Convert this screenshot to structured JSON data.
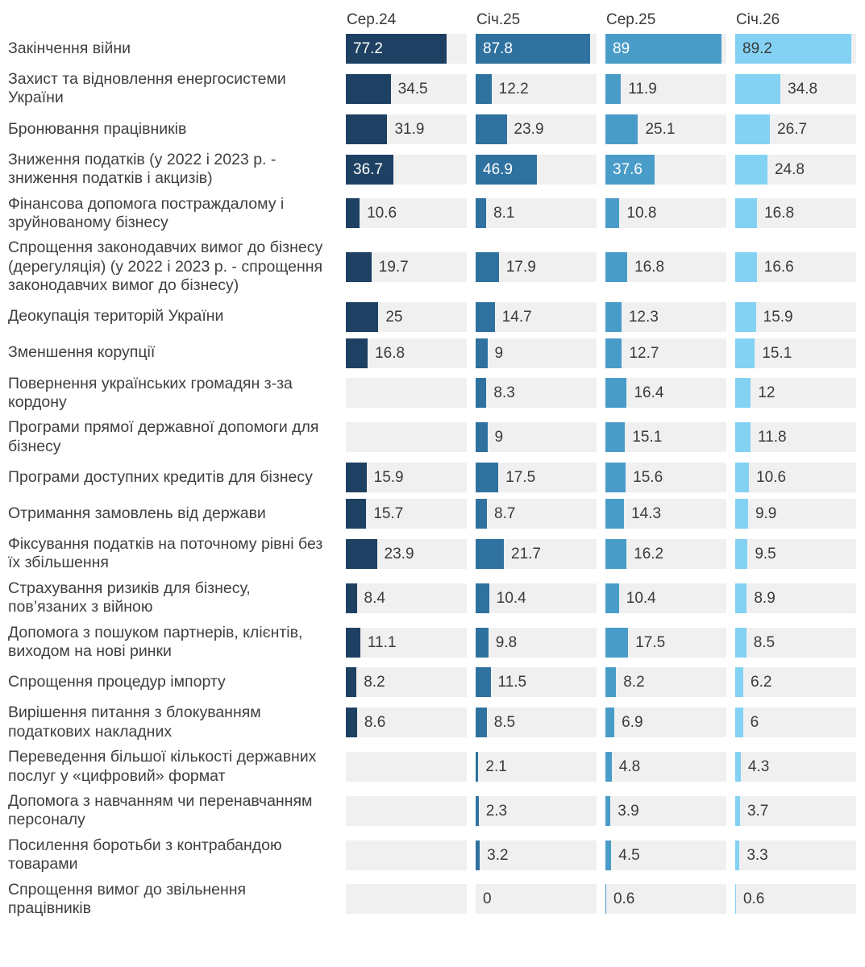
{
  "chart_data": {
    "type": "bar",
    "orientation": "horizontal",
    "title": "",
    "xlabel": "",
    "ylabel": "",
    "value_axis_max": 93,
    "grid": false,
    "legend_position": "top-as-column-headers",
    "track_color": "#f0f0f1",
    "inside_label_threshold": 36,
    "categories": [
      "Закінчення війни",
      "Захист та відновлення енергосистеми України",
      "Бронювання працівників",
      "Зниження податків (у 2022 і 2023 р. - зниження податків і акцизів)",
      "Фінансова допомога постраждалому і зруйнованому бізнесу",
      "Спрощення законодавчих вимог до бізнесу (дерегуляція) (у 2022 і 2023 р. - спрощення законодавчих вимог до бізнесу)",
      "Деокупація територій України",
      "Зменшення корупції",
      "Повернення українських громадян з-за кордону",
      "Програми прямої державної допомоги для бізнесу",
      "Програми доступних кредитів для бізнесу",
      "Отримання замовлень від держави",
      "Фіксування податків на поточному рівні без їх збільшення",
      "Страхування ризиків для бізнесу, пов’язаних з війною",
      "Допомога з пошуком партнерів, клієнтів, виходом на нові ринки",
      "Спрощення процедур імпорту",
      "Вирішення питання з блокуванням податкових накладних",
      "Переведення більшої кількості державних послуг у «цифровий» формат",
      "Допомога з навчанням чи перенавчанням персоналу",
      "Посилення боротьби з контрабандою товарами",
      "Спрощення вимог до звільнення працівників"
    ],
    "series": [
      {
        "name": "Сер.24",
        "color": "#1e4163",
        "values": [
          77.2,
          34.5,
          31.9,
          36.7,
          10.6,
          19.7,
          25,
          16.8,
          null,
          null,
          15.9,
          15.7,
          23.9,
          8.4,
          11.1,
          8.2,
          8.6,
          null,
          null,
          null,
          null
        ]
      },
      {
        "name": "Січ.25",
        "color": "#2f719f",
        "values": [
          87.8,
          12.2,
          23.9,
          46.9,
          8.1,
          17.9,
          14.7,
          9,
          8.3,
          9,
          17.5,
          8.7,
          21.7,
          10.4,
          9.8,
          11.5,
          8.5,
          2.1,
          2.3,
          3.2,
          0
        ]
      },
      {
        "name": "Сер.25",
        "color": "#4a9cc8",
        "values": [
          89,
          11.9,
          25.1,
          37.6,
          10.8,
          16.8,
          12.3,
          12.7,
          16.4,
          15.1,
          15.6,
          14.3,
          16.2,
          10.4,
          17.5,
          8.2,
          6.9,
          4.8,
          3.9,
          4.5,
          0.6
        ]
      },
      {
        "name": "Січ.26",
        "color": "#83d2f4",
        "values": [
          89.2,
          34.8,
          26.7,
          24.8,
          16.8,
          16.6,
          15.9,
          15.1,
          12,
          11.8,
          10.6,
          9.9,
          9.5,
          8.9,
          8.5,
          6.2,
          6,
          4.3,
          3.7,
          3.3,
          0.6
        ]
      }
    ]
  }
}
